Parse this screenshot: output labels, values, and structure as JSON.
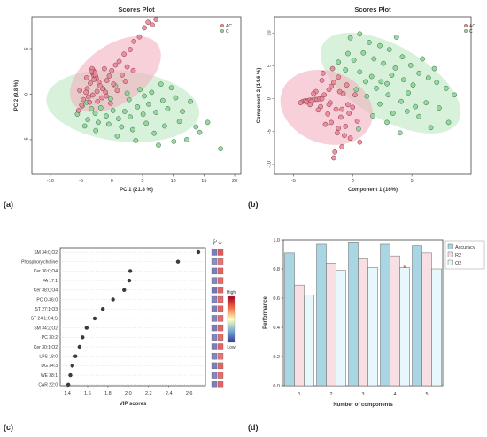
{
  "panel_labels": [
    "(a)",
    "(b)",
    "(c)",
    "(d)"
  ],
  "colors": {
    "ac_fill": "#e48a98",
    "ac_ellipse": "#f3b1bf",
    "c_fill": "#8fd39a",
    "c_ellipse": "#b7e6bd",
    "overlap": "#b8a98a",
    "accuracy": "#a8d6e3",
    "r2": "#f8dfe3",
    "q2": "#e6f8fb",
    "star": "#e23a2c"
  },
  "chart_data": [
    {
      "type": "scatter",
      "title": "Scores Plot",
      "xlabel": "PC 1 (21.8 %)",
      "ylabel": "PC 2 (9.8 %)",
      "xlim": [
        -13,
        21
      ],
      "ylim": [
        -8.8,
        8.5
      ],
      "xticks": [
        -10,
        -5,
        0,
        5,
        10,
        15,
        20
      ],
      "yticks": [
        -5,
        0,
        5
      ],
      "legend": {
        "placement": "top-right",
        "entries": [
          "AC",
          "C"
        ]
      },
      "ellipses": [
        {
          "series": "C",
          "cx": 1.8,
          "cy": -1.3,
          "rx": 12.5,
          "ry": 3.9,
          "angle_deg": -6
        },
        {
          "series": "AC",
          "cx": 0.6,
          "cy": 2.2,
          "rx": 8.4,
          "ry": 3.2,
          "angle_deg": 35
        }
      ],
      "series": [
        {
          "name": "AC",
          "points": [
            [
              -3.1,
              2.3
            ],
            [
              -3.0,
              2.6
            ],
            [
              -2.9,
              2.0
            ],
            [
              -2.8,
              2.4
            ],
            [
              -2.6,
              1.9
            ],
            [
              -3.2,
              2.8
            ],
            [
              -2.7,
              2.1
            ],
            [
              -3.3,
              2.5
            ],
            [
              -2.5,
              1.7
            ],
            [
              -2.9,
              1.6
            ],
            [
              -3.5,
              1.2
            ],
            [
              -4.0,
              0.6
            ],
            [
              -4.2,
              0.2
            ],
            [
              -3.8,
              -0.3
            ],
            [
              -2.1,
              1.3
            ],
            [
              -1.5,
              0.6
            ],
            [
              -1.0,
              0.2
            ],
            [
              -1.6,
              -0.4
            ],
            [
              -2.3,
              -0.8
            ],
            [
              -3.6,
              -0.9
            ],
            [
              -4.6,
              -0.6
            ],
            [
              -5.2,
              0.4
            ],
            [
              -4.9,
              -1.2
            ],
            [
              -0.8,
              1.5
            ],
            [
              -0.4,
              2.0
            ],
            [
              0.0,
              2.6
            ],
            [
              0.6,
              3.2
            ],
            [
              1.2,
              3.6
            ],
            [
              2.0,
              4.4
            ],
            [
              3.0,
              4.9
            ],
            [
              3.6,
              5.8
            ],
            [
              4.5,
              6.3
            ],
            [
              5.3,
              7.3
            ],
            [
              5.9,
              7.9
            ],
            [
              6.6,
              7.6
            ],
            [
              7.2,
              8.2
            ],
            [
              2.5,
              3.0
            ],
            [
              1.7,
              2.1
            ],
            [
              0.3,
              1.1
            ],
            [
              -0.9,
              -0.2
            ],
            [
              -1.9,
              0.9
            ],
            [
              -2.4,
              0.3
            ],
            [
              -3.1,
              -0.1
            ],
            [
              -4.1,
              1.8
            ],
            [
              -1.2,
              2.8
            ],
            [
              0.9,
              0.4
            ],
            [
              2.2,
              1.4
            ],
            [
              -0.2,
              -1.0
            ],
            [
              -5.4,
              -1.8
            ],
            [
              3.5,
              2.6
            ]
          ]
        },
        {
          "name": "C",
          "points": [
            [
              -4.8,
              -1.3
            ],
            [
              -4.1,
              -0.9
            ],
            [
              -3.3,
              -1.6
            ],
            [
              -2.7,
              -2.1
            ],
            [
              -1.8,
              -1.5
            ],
            [
              -0.9,
              -2.4
            ],
            [
              0.2,
              -1.8
            ],
            [
              1.1,
              -2.7
            ],
            [
              2.1,
              -1.9
            ],
            [
              3.0,
              -2.5
            ],
            [
              4.2,
              -1.4
            ],
            [
              5.1,
              -2.2
            ],
            [
              6.0,
              -1.1
            ],
            [
              7.2,
              -2.0
            ],
            [
              8.3,
              -0.7
            ],
            [
              9.1,
              -1.6
            ],
            [
              10.4,
              -0.4
            ],
            [
              11.5,
              -1.9
            ],
            [
              12.8,
              -0.8
            ],
            [
              13.7,
              -3.6
            ],
            [
              14.3,
              -4.2
            ],
            [
              17.7,
              -6.0
            ],
            [
              -3.9,
              -2.8
            ],
            [
              -2.2,
              -3.1
            ],
            [
              -0.5,
              -3.3
            ],
            [
              1.6,
              -3.6
            ],
            [
              3.4,
              -3.9
            ],
            [
              5.6,
              -3.2
            ],
            [
              6.9,
              -4.3
            ],
            [
              8.6,
              -3.5
            ],
            [
              10.1,
              -5.2
            ],
            [
              12.2,
              -5.0
            ],
            [
              -1.4,
              0.6
            ],
            [
              0.6,
              0.9
            ],
            [
              2.5,
              0.1
            ],
            [
              4.6,
              0.5
            ],
            [
              6.5,
              0.2
            ],
            [
              8.0,
              1.1
            ],
            [
              9.7,
              0.7
            ],
            [
              -5.6,
              -2.2
            ],
            [
              -4.4,
              -3.5
            ],
            [
              -2.6,
              -4.0
            ],
            [
              0.9,
              -4.6
            ],
            [
              3.9,
              -5.1
            ],
            [
              7.6,
              -5.6
            ],
            [
              11.0,
              -3.0
            ],
            [
              2.8,
              -0.6
            ],
            [
              5.3,
              -0.2
            ],
            [
              -0.2,
              -0.5
            ],
            [
              15.6,
              -3.1
            ]
          ]
        }
      ]
    },
    {
      "type": "scatter",
      "title": "Scores Plot",
      "xlabel": "Component 1 (16%)",
      "ylabel": "Component 2 (14.6 %)",
      "xlim": [
        -6.6,
        10
      ],
      "ylim": [
        -11.5,
        12.5
      ],
      "xticks": [
        -5,
        0,
        5
      ],
      "yticks": [
        -10,
        -5,
        0,
        5,
        10
      ],
      "legend": {
        "placement": "top-right",
        "entries": [
          "AC",
          "C"
        ]
      },
      "ellipses": [
        {
          "series": "C",
          "cx": 3.2,
          "cy": 2.4,
          "rx": 6.6,
          "ry": 5.6,
          "angle_deg": -30
        },
        {
          "series": "AC",
          "cx": -2.2,
          "cy": -1.3,
          "rx": 4.0,
          "ry": 5.5,
          "angle_deg": -20
        }
      ],
      "series": [
        {
          "name": "AC",
          "points": [
            [
              -4.2,
              -0.4
            ],
            [
              -4.0,
              -0.3
            ],
            [
              -3.8,
              -0.3
            ],
            [
              -3.6,
              -0.2
            ],
            [
              -3.4,
              -0.2
            ],
            [
              -3.2,
              -0.1
            ],
            [
              -3.0,
              -0.1
            ],
            [
              -2.8,
              0.0
            ],
            [
              -2.6,
              0.0
            ],
            [
              -3.9,
              -0.5
            ],
            [
              -3.5,
              -0.4
            ],
            [
              -4.4,
              -0.6
            ],
            [
              -2.4,
              0.6
            ],
            [
              -2.0,
              1.4
            ],
            [
              -1.6,
              2.5
            ],
            [
              -1.2,
              3.3
            ],
            [
              -0.8,
              0.8
            ],
            [
              -0.4,
              -0.9
            ],
            [
              -1.4,
              -1.6
            ],
            [
              -2.1,
              -2.3
            ],
            [
              -2.7,
              -1.2
            ],
            [
              -1.9,
              -0.6
            ],
            [
              -1.0,
              -2.8
            ],
            [
              -0.6,
              -4.2
            ],
            [
              -1.3,
              -5.2
            ],
            [
              -1.8,
              -3.6
            ],
            [
              -0.2,
              -6.0
            ],
            [
              -0.9,
              -7.3
            ],
            [
              -1.6,
              -9.0
            ],
            [
              -2.5,
              3.9
            ],
            [
              -1.7,
              4.6
            ],
            [
              -0.5,
              2.1
            ],
            [
              0.2,
              0.6
            ],
            [
              -3.1,
              1.1
            ],
            [
              -2.3,
              -3.9
            ],
            [
              -0.3,
              -2.2
            ],
            [
              -1.1,
              1.1
            ],
            [
              -2.9,
              -1.7
            ],
            [
              0.4,
              -3.4
            ],
            [
              -1.5,
              -8.1
            ],
            [
              -3.3,
              0.8
            ],
            [
              -0.7,
              -5.6
            ],
            [
              -2.0,
              -0.9
            ],
            [
              -1.2,
              -4.5
            ],
            [
              0.0,
              -1.3
            ],
            [
              -2.6,
              2.8
            ],
            [
              -1.8,
              1.9
            ],
            [
              -0.9,
              -1.6
            ],
            [
              -3.6,
              -0.9
            ],
            [
              0.6,
              -6.6
            ]
          ]
        },
        {
          "name": "C",
          "points": [
            [
              -0.2,
              9.3
            ],
            [
              0.6,
              9.9
            ],
            [
              1.4,
              8.6
            ],
            [
              2.3,
              8.1
            ],
            [
              3.1,
              7.5
            ],
            [
              0.9,
              7.0
            ],
            [
              1.8,
              6.1
            ],
            [
              2.6,
              5.4
            ],
            [
              3.6,
              4.7
            ],
            [
              4.2,
              6.4
            ],
            [
              4.9,
              5.1
            ],
            [
              5.6,
              3.9
            ],
            [
              6.4,
              3.2
            ],
            [
              7.1,
              2.5
            ],
            [
              7.9,
              1.6
            ],
            [
              8.6,
              0.6
            ],
            [
              5.1,
              2.1
            ],
            [
              4.3,
              2.9
            ],
            [
              3.3,
              3.6
            ],
            [
              2.4,
              2.6
            ],
            [
              1.6,
              3.4
            ],
            [
              0.6,
              4.1
            ],
            [
              -0.6,
              4.4
            ],
            [
              -1.2,
              5.6
            ],
            [
              0.1,
              5.9
            ],
            [
              2.0,
              1.6
            ],
            [
              3.0,
              0.6
            ],
            [
              4.1,
              -0.4
            ],
            [
              5.3,
              -1.2
            ],
            [
              6.2,
              -0.6
            ],
            [
              7.3,
              -1.4
            ],
            [
              8.1,
              -3.6
            ],
            [
              6.6,
              -4.4
            ],
            [
              5.6,
              -2.7
            ],
            [
              4.6,
              -1.9
            ],
            [
              3.4,
              -2.2
            ],
            [
              2.3,
              -0.8
            ],
            [
              1.2,
              0.4
            ],
            [
              0.3,
              1.4
            ],
            [
              1.7,
              -2.6
            ],
            [
              0.5,
              -4.6
            ],
            [
              2.9,
              -3.6
            ],
            [
              4.0,
              -5.2
            ],
            [
              -0.4,
              6.9
            ],
            [
              3.7,
              9.4
            ],
            [
              5.9,
              6.1
            ],
            [
              6.9,
              4.6
            ],
            [
              2.9,
              2.3
            ],
            [
              1.1,
              2.6
            ],
            [
              4.7,
              0.9
            ]
          ]
        }
      ]
    },
    {
      "type": "scatter",
      "subtype": "vip",
      "xlabel": "VIP scores",
      "xlim": [
        1.33,
        2.76
      ],
      "xticks": [
        1.4,
        1.6,
        1.8,
        2.0,
        2.2,
        2.4,
        2.6
      ],
      "categories": [
        "SM 34:0;O2",
        "Phosphorylcholine",
        "Cer 36:0;O4",
        "FA 17:1",
        "Cer 38:0;O4",
        "PC O-36:0",
        "ST 27:1;O3",
        "ST 24:1;O4;S",
        "SM 34:2;O2",
        "PC 30:2",
        "Cer 30:1;O2",
        "LPS 18:0",
        "DG 34:3",
        "WE 38:1",
        "CAR 22:0"
      ],
      "values": [
        2.69,
        2.49,
        2.02,
        2.01,
        1.96,
        1.85,
        1.75,
        1.67,
        1.59,
        1.55,
        1.52,
        1.48,
        1.45,
        1.43,
        1.41
      ],
      "heat_columns": [
        "AC",
        "C"
      ],
      "heat_levels": [
        [
          0.18,
          0.86
        ],
        [
          0.22,
          0.8
        ],
        [
          0.18,
          0.84
        ],
        [
          0.2,
          0.82
        ],
        [
          0.16,
          0.84
        ],
        [
          0.2,
          0.82
        ],
        [
          0.18,
          0.84
        ],
        [
          0.2,
          0.82
        ],
        [
          0.18,
          0.84
        ],
        [
          0.2,
          0.82
        ],
        [
          0.18,
          0.84
        ],
        [
          0.2,
          0.8
        ],
        [
          0.18,
          0.84
        ],
        [
          0.2,
          0.82
        ],
        [
          0.18,
          0.84
        ]
      ],
      "colorbar": {
        "high": "High",
        "low": "Low"
      }
    },
    {
      "type": "bar",
      "xlabel": "Number of components",
      "ylabel": "Performance",
      "ylim": [
        0,
        1.0
      ],
      "yticks": [
        0.0,
        0.2,
        0.4,
        0.6,
        0.8,
        1.0
      ],
      "categories": [
        "1",
        "2",
        "3",
        "4",
        "5"
      ],
      "series": [
        {
          "name": "Accuracy",
          "values": [
            0.91,
            0.97,
            0.98,
            0.97,
            0.96
          ]
        },
        {
          "name": "R2",
          "values": [
            0.69,
            0.84,
            0.87,
            0.89,
            0.91
          ]
        },
        {
          "name": "Q2",
          "values": [
            0.62,
            0.79,
            0.81,
            0.81,
            0.8
          ]
        }
      ],
      "marker": {
        "category": "4",
        "series": "Q2",
        "symbol": "*"
      },
      "legend": {
        "placement": "top-right",
        "entries": [
          "Accuracy",
          "R2",
          "Q2"
        ]
      }
    }
  ]
}
